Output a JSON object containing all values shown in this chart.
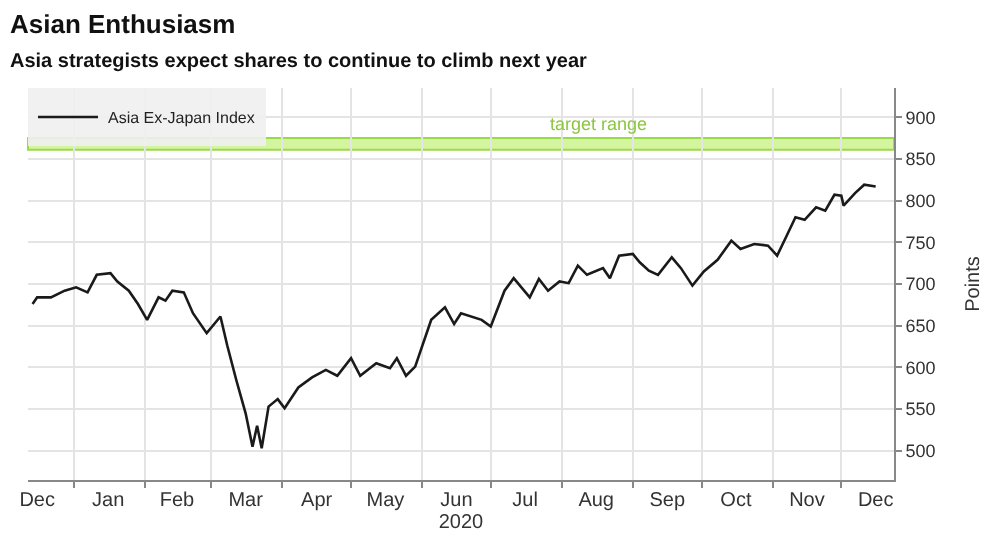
{
  "chart_data": {
    "type": "line",
    "title": "Asian Enthusiasm",
    "subtitle": "Asia strategists expect shares to continue to climb next year",
    "ylabel": "Points",
    "xlabel": "2020",
    "x": [
      "2019-12-14",
      "2019-12-16",
      "2019-12-22",
      "2019-12-28",
      "2020-01-02",
      "2020-01-07",
      "2020-01-11",
      "2020-01-17",
      "2020-01-20",
      "2020-01-25",
      "2020-01-29",
      "2020-02-02",
      "2020-02-07",
      "2020-02-10",
      "2020-02-13",
      "2020-02-18",
      "2020-02-22",
      "2020-02-28",
      "2020-03-05",
      "2020-03-08",
      "2020-03-12",
      "2020-03-16",
      "2020-03-19",
      "2020-03-21",
      "2020-03-23",
      "2020-03-26",
      "2020-03-30",
      "2020-04-02",
      "2020-04-08",
      "2020-04-14",
      "2020-04-20",
      "2020-04-25",
      "2020-05-01",
      "2020-05-05",
      "2020-05-12",
      "2020-05-18",
      "2020-05-21",
      "2020-05-25",
      "2020-05-29",
      "2020-06-05",
      "2020-06-11",
      "2020-06-15",
      "2020-06-18",
      "2020-06-27",
      "2020-07-01",
      "2020-07-07",
      "2020-07-11",
      "2020-07-18",
      "2020-07-22",
      "2020-07-26",
      "2020-07-31",
      "2020-08-04",
      "2020-08-08",
      "2020-08-12",
      "2020-08-19",
      "2020-08-22",
      "2020-08-26",
      "2020-09-01",
      "2020-09-04",
      "2020-09-08",
      "2020-09-12",
      "2020-09-18",
      "2020-09-22",
      "2020-09-27",
      "2020-10-02",
      "2020-10-08",
      "2020-10-14",
      "2020-10-18",
      "2020-10-24",
      "2020-10-30",
      "2020-11-03",
      "2020-11-07",
      "2020-11-11",
      "2020-11-15",
      "2020-11-20",
      "2020-11-24",
      "2020-11-28",
      "2020-12-01",
      "2020-12-02",
      "2020-12-07",
      "2020-12-11",
      "2020-12-16"
    ],
    "series": [
      {
        "name": "Asia Ex-Japan Index",
        "color": "#1a1a1a",
        "values": [
          676,
          684,
          684,
          692,
          696,
          690,
          711,
          713,
          703,
          692,
          676,
          657,
          684,
          680,
          692,
          690,
          665,
          641,
          661,
          626,
          584,
          545,
          505,
          530,
          503,
          553,
          562,
          551,
          576,
          588,
          597,
          590,
          611,
          590,
          605,
          599,
          611,
          590,
          601,
          657,
          672,
          652,
          665,
          657,
          649,
          692,
          707,
          684,
          706,
          692,
          703,
          701,
          722,
          711,
          719,
          707,
          734,
          736,
          726,
          716,
          711,
          732,
          719,
          698,
          715,
          729,
          752,
          742,
          748,
          746,
          734,
          757,
          780,
          777,
          792,
          788,
          807,
          806,
          794,
          809,
          819,
          817
        ]
      }
    ],
    "xlim": [
      "2019-12-12",
      "2020-12-24"
    ],
    "xticks": [
      {
        "value": "2019-12-16",
        "label": "Dec"
      },
      {
        "value": "2020-01-16",
        "label": "Jan"
      },
      {
        "value": "2020-02-15",
        "label": "Feb"
      },
      {
        "value": "2020-03-16",
        "label": "Mar"
      },
      {
        "value": "2020-04-16",
        "label": "Apr"
      },
      {
        "value": "2020-05-16",
        "label": "May"
      },
      {
        "value": "2020-06-16",
        "label": "Jun"
      },
      {
        "value": "2020-07-16",
        "label": "Jul"
      },
      {
        "value": "2020-08-16",
        "label": "Aug"
      },
      {
        "value": "2020-09-16",
        "label": "Sep"
      },
      {
        "value": "2020-10-16",
        "label": "Oct"
      },
      {
        "value": "2020-11-16",
        "label": "Nov"
      },
      {
        "value": "2020-12-16",
        "label": "Dec"
      }
    ],
    "ylim": [
      465,
      935
    ],
    "yticks": [
      500,
      550,
      600,
      650,
      700,
      750,
      800,
      850,
      900
    ],
    "bands": [
      {
        "axis": "y",
        "from": 861,
        "to": 875,
        "label": "target range",
        "color": "#d4f5a0"
      }
    ],
    "grid": true,
    "legend": "top left",
    "marker": "none",
    "line_style": "solid"
  }
}
